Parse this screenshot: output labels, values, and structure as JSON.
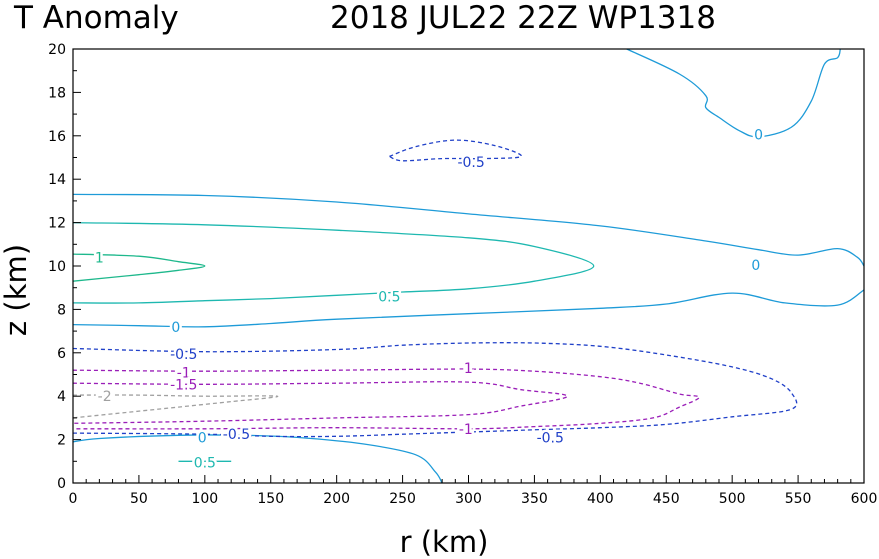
{
  "chart_data": {
    "type": "contour",
    "title_left": "T Anomaly",
    "title_right": "2018 JUL22 22Z   WP1318",
    "xlabel": "r (km)",
    "ylabel": "z (km)",
    "xlim": [
      0,
      600
    ],
    "ylim": [
      0,
      20
    ],
    "xticks": [
      "0",
      "50",
      "100",
      "150",
      "200",
      "250",
      "300",
      "350",
      "400",
      "450",
      "500",
      "550",
      "600"
    ],
    "yticks": [
      "0",
      "2",
      "4",
      "6",
      "8",
      "10",
      "12",
      "14",
      "16",
      "18",
      "20"
    ],
    "grid": false,
    "contours": [
      {
        "level": 0,
        "color": "#1e9bd8",
        "dashed": false,
        "label": "0",
        "points": [
          [
            0,
            13.3
          ],
          [
            100,
            13.25
          ],
          [
            200,
            12.95
          ],
          [
            300,
            12.4
          ],
          [
            400,
            11.85
          ],
          [
            480,
            11.15
          ],
          [
            520,
            10.75
          ],
          [
            550,
            10.5
          ],
          [
            580,
            10.8
          ],
          [
            595,
            10.4
          ],
          [
            600,
            10
          ]
        ]
      },
      {
        "level": 0,
        "color": "#1e9bd8",
        "dashed": false,
        "label": "0",
        "points": [
          [
            0,
            7.3
          ],
          [
            50,
            7.25
          ],
          [
            100,
            7.2
          ],
          [
            150,
            7.35
          ],
          [
            200,
            7.55
          ],
          [
            300,
            7.8
          ],
          [
            400,
            8.05
          ],
          [
            450,
            8.25
          ],
          [
            500,
            8.75
          ],
          [
            540,
            8.3
          ],
          [
            580,
            8.2
          ],
          [
            600,
            8.9
          ]
        ]
      },
      {
        "level": 0,
        "color": "#1e9bd8",
        "dashed": false,
        "label": "0",
        "points": [
          [
            0,
            1.9
          ],
          [
            20,
            2.05
          ],
          [
            80,
            2.2
          ],
          [
            130,
            2.2
          ],
          [
            170,
            2.1
          ],
          [
            220,
            1.8
          ],
          [
            260,
            1.3
          ],
          [
            275,
            0.5
          ],
          [
            280,
            0
          ]
        ]
      },
      {
        "level": 0,
        "color": "#1e9bd8",
        "dashed": false,
        "label": "0",
        "points": [
          [
            420,
            20
          ],
          [
            460,
            18.85
          ],
          [
            480,
            17.85
          ],
          [
            480,
            17.3
          ],
          [
            490,
            16.85
          ],
          [
            505,
            16.25
          ],
          [
            520,
            15.95
          ],
          [
            545,
            16.4
          ],
          [
            560,
            17.6
          ],
          [
            570,
            19.3
          ],
          [
            580,
            19.6
          ],
          [
            582,
            20
          ]
        ]
      },
      {
        "level": 0.5,
        "color": "#1eb8b0",
        "dashed": false,
        "label": "0.5",
        "points": [
          [
            0,
            12
          ],
          [
            100,
            11.9
          ],
          [
            200,
            11.65
          ],
          [
            300,
            11.3
          ],
          [
            350,
            10.9
          ],
          [
            395,
            10
          ],
          [
            350,
            9.3
          ],
          [
            300,
            8.95
          ],
          [
            250,
            8.8
          ],
          [
            200,
            8.65
          ],
          [
            150,
            8.5
          ],
          [
            100,
            8.4
          ],
          [
            50,
            8.3
          ],
          [
            0,
            8.3
          ]
        ]
      },
      {
        "level": 1,
        "color": "#1eb88c",
        "dashed": false,
        "label": "1",
        "points": [
          [
            0,
            10.55
          ],
          [
            50,
            10.45
          ],
          [
            80,
            10.2
          ],
          [
            100,
            10
          ],
          [
            80,
            9.8
          ],
          [
            50,
            9.6
          ],
          [
            0,
            9.3
          ]
        ]
      },
      {
        "level": 0.5,
        "color": "#1eb8b0",
        "dashed": false,
        "label": "0.5",
        "points": [
          [
            80,
            1
          ],
          [
            120,
            1
          ]
        ]
      },
      {
        "level": -0.5,
        "color": "#2040c8",
        "dashed": true,
        "label": "-0.5",
        "points": [
          [
            240,
            15.05
          ],
          [
            260,
            15.5
          ],
          [
            290,
            15.8
          ],
          [
            320,
            15.55
          ],
          [
            340,
            15.05
          ],
          [
            310,
            14.95
          ],
          [
            280,
            14.95
          ],
          [
            250,
            14.85
          ],
          [
            240,
            15.05
          ]
        ]
      },
      {
        "level": -0.5,
        "color": "#2040c8",
        "dashed": true,
        "label": "-0.5",
        "points": [
          [
            0,
            6.2
          ],
          [
            100,
            6.05
          ],
          [
            200,
            6.15
          ],
          [
            250,
            6.35
          ],
          [
            300,
            6.45
          ],
          [
            350,
            6.45
          ],
          [
            400,
            6.3
          ],
          [
            450,
            5.9
          ],
          [
            500,
            5.35
          ],
          [
            530,
            4.8
          ],
          [
            545,
            4.15
          ],
          [
            545,
            3.4
          ],
          [
            500,
            3.05
          ],
          [
            450,
            2.7
          ],
          [
            400,
            2.55
          ],
          [
            350,
            2.45
          ],
          [
            300,
            2.35
          ],
          [
            250,
            2.25
          ],
          [
            200,
            2.15
          ],
          [
            150,
            2.15
          ],
          [
            100,
            2.25
          ],
          [
            0,
            2.3
          ]
        ]
      },
      {
        "level": -1,
        "color": "#9a1eb8",
        "dashed": true,
        "label": "-1",
        "points": [
          [
            0,
            5.2
          ],
          [
            100,
            5.15
          ],
          [
            200,
            5.2
          ],
          [
            300,
            5.25
          ],
          [
            350,
            5.15
          ],
          [
            400,
            4.9
          ],
          [
            430,
            4.6
          ],
          [
            460,
            4.1
          ],
          [
            475,
            3.95
          ],
          [
            460,
            3.5
          ],
          [
            440,
            3
          ],
          [
            400,
            2.75
          ],
          [
            350,
            2.6
          ],
          [
            300,
            2.5
          ],
          [
            200,
            2.55
          ],
          [
            100,
            2.5
          ],
          [
            0,
            2.5
          ]
        ]
      },
      {
        "level": -1.5,
        "color": "#9a1eb8",
        "dashed": true,
        "label": "-1.5",
        "points": [
          [
            0,
            4.6
          ],
          [
            100,
            4.55
          ],
          [
            200,
            4.6
          ],
          [
            300,
            4.65
          ],
          [
            340,
            4.3
          ],
          [
            375,
            4
          ],
          [
            340,
            3.55
          ],
          [
            300,
            3.15
          ],
          [
            200,
            3
          ],
          [
            100,
            2.85
          ],
          [
            0,
            2.75
          ]
        ]
      },
      {
        "level": -2,
        "color": "#a0a0a0",
        "dashed": true,
        "label": "-2",
        "points": [
          [
            0,
            4.05
          ],
          [
            50,
            4.05
          ],
          [
            100,
            4
          ],
          [
            155,
            4
          ],
          [
            120,
            3.75
          ],
          [
            80,
            3.5
          ],
          [
            40,
            3.25
          ],
          [
            0,
            3
          ]
        ]
      }
    ],
    "contour_labels": [
      {
        "text": "0",
        "x": 520,
        "y": 16.05,
        "color": "#1e9bd8"
      },
      {
        "text": "0",
        "x": 518,
        "y": 10.05,
        "color": "#1e9bd8"
      },
      {
        "text": "0",
        "x": 78,
        "y": 7.2,
        "color": "#1e9bd8"
      },
      {
        "text": "0",
        "x": 98,
        "y": 2.1,
        "color": "#1e9bd8"
      },
      {
        "text": "0.5",
        "x": 240,
        "y": 8.6,
        "color": "#1eb8b0"
      },
      {
        "text": "0.5",
        "x": 100,
        "y": 0.95,
        "color": "#1eb8b0"
      },
      {
        "text": "1",
        "x": 20,
        "y": 10.4,
        "color": "#1eb88c"
      },
      {
        "text": "-0.5",
        "x": 302,
        "y": 14.8,
        "color": "#2040c8"
      },
      {
        "text": "-0.5",
        "x": 84,
        "y": 5.95,
        "color": "#2040c8"
      },
      {
        "text": "-0.5",
        "x": 124,
        "y": 2.25,
        "color": "#2040c8"
      },
      {
        "text": "-0.5",
        "x": 362,
        "y": 2.1,
        "color": "#2040c8"
      },
      {
        "text": "-1",
        "x": 84,
        "y": 5.1,
        "color": "#9a1eb8"
      },
      {
        "text": "-1",
        "x": 298,
        "y": 5.3,
        "color": "#9a1eb8"
      },
      {
        "text": "-1",
        "x": 298,
        "y": 2.5,
        "color": "#9a1eb8"
      },
      {
        "text": "-1.5",
        "x": 84,
        "y": 4.55,
        "color": "#9a1eb8"
      },
      {
        "text": "-2",
        "x": 24,
        "y": 4,
        "color": "#a0a0a0"
      }
    ]
  }
}
